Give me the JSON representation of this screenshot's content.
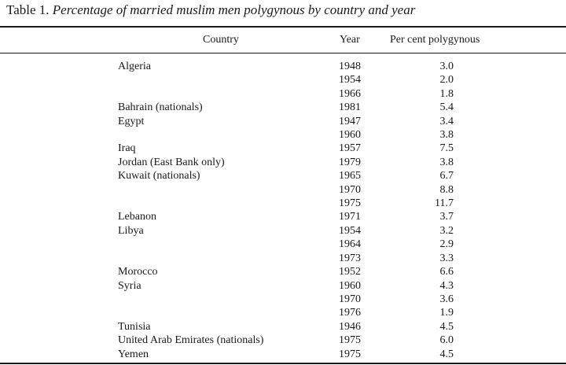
{
  "caption": {
    "label": "Table 1.",
    "title": "Percentage of married muslim men polygynous by country and year"
  },
  "columns": {
    "country": "Country",
    "year": "Year",
    "percent": "Per cent polygynous"
  },
  "rows": [
    {
      "country": "Algeria",
      "year": "1948",
      "percent": "3.0"
    },
    {
      "country": "",
      "year": "1954",
      "percent": "2.0"
    },
    {
      "country": "",
      "year": "1966",
      "percent": "1.8"
    },
    {
      "country": "Bahrain (nationals)",
      "year": "1981",
      "percent": "5.4"
    },
    {
      "country": "Egypt",
      "year": "1947",
      "percent": "3.4"
    },
    {
      "country": "",
      "year": "1960",
      "percent": "3.8"
    },
    {
      "country": "Iraq",
      "year": "1957",
      "percent": "7.5"
    },
    {
      "country": "Jordan (East Bank only)",
      "year": "1979",
      "percent": "3.8"
    },
    {
      "country": "Kuwait (nationals)",
      "year": "1965",
      "percent": "6.7"
    },
    {
      "country": "",
      "year": "1970",
      "percent": "8.8"
    },
    {
      "country": "",
      "year": "1975",
      "percent": "11.7"
    },
    {
      "country": "Lebanon",
      "year": "1971",
      "percent": "3.7"
    },
    {
      "country": "Libya",
      "year": "1954",
      "percent": "3.2"
    },
    {
      "country": "",
      "year": "1964",
      "percent": "2.9"
    },
    {
      "country": "",
      "year": "1973",
      "percent": "3.3"
    },
    {
      "country": "Morocco",
      "year": "1952",
      "percent": "6.6"
    },
    {
      "country": "Syria",
      "year": "1960",
      "percent": "4.3"
    },
    {
      "country": "",
      "year": "1970",
      "percent": "3.6"
    },
    {
      "country": "",
      "year": "1976",
      "percent": "1.9"
    },
    {
      "country": "Tunisia",
      "year": "1946",
      "percent": "4.5"
    },
    {
      "country": "United Arab Emirates (nationals)",
      "year": "1975",
      "percent": "6.0"
    },
    {
      "country": "Yemen",
      "year": "1975",
      "percent": "4.5"
    }
  ]
}
